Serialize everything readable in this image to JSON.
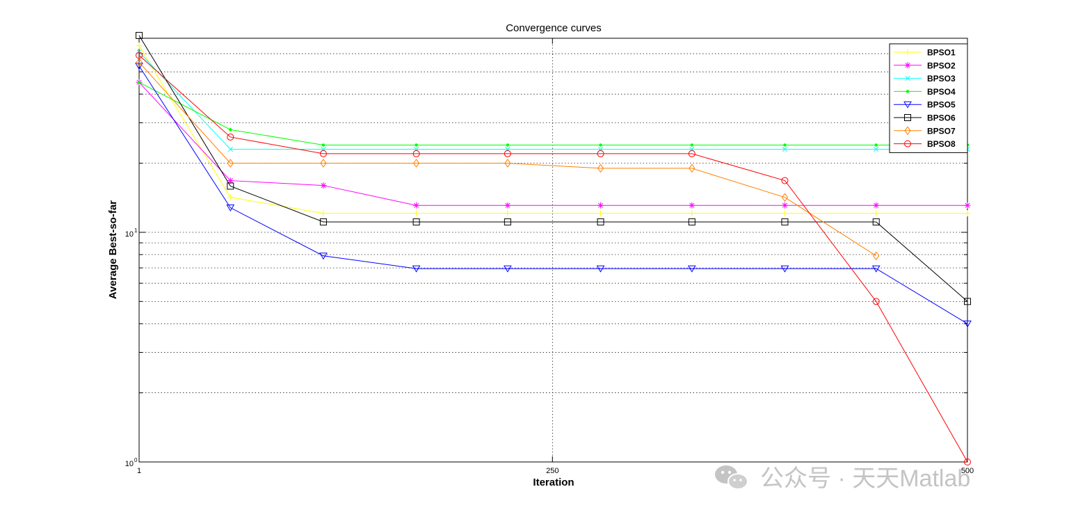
{
  "chart_data": {
    "type": "line",
    "title": "Convergence curves",
    "xlabel": "Iteration",
    "ylabel": "Average Best-so-far",
    "x_scale": "linear",
    "y_scale": "log",
    "xlim": [
      1,
      500
    ],
    "ylim": [
      1,
      70
    ],
    "xticks": [
      {
        "value": 1,
        "label": "1"
      },
      {
        "value": 250,
        "label": "250"
      },
      {
        "value": 500,
        "label": "500"
      }
    ],
    "yticks": [
      {
        "value": 1,
        "base": "10",
        "exp": "0"
      },
      {
        "value": 10,
        "base": "10",
        "exp": "1"
      }
    ],
    "grid": true,
    "legend_position": "top-right",
    "x": [
      1,
      56,
      112,
      168,
      223,
      279,
      334,
      390,
      445,
      500
    ],
    "series": [
      {
        "name": "BPSO1",
        "color": "#ffff00",
        "marker": "plus",
        "values": [
          65,
          14.2,
          12.1,
          12.1,
          12.1,
          12.1,
          12.1,
          12.1,
          12.1,
          12.1
        ]
      },
      {
        "name": "BPSO2",
        "color": "#ff00ff",
        "marker": "star",
        "values": [
          45,
          16.8,
          16.0,
          13.1,
          13.1,
          13.1,
          13.1,
          13.1,
          13.1,
          13.1
        ]
      },
      {
        "name": "BPSO3",
        "color": "#00ffff",
        "marker": "x",
        "values": [
          61,
          23.0,
          23.0,
          23.0,
          23.0,
          23.0,
          23.0,
          23.0,
          23.0,
          23.0
        ]
      },
      {
        "name": "BPSO4",
        "color": "#00ff00",
        "marker": "dot",
        "values": [
          45,
          28.0,
          24.0,
          24.0,
          24.0,
          24.0,
          24.0,
          24.0,
          24.0,
          24.0
        ]
      },
      {
        "name": "BPSO5",
        "color": "#0000ff",
        "marker": "triangle-down",
        "values": [
          53,
          12.8,
          7.9,
          6.95,
          6.95,
          6.95,
          6.95,
          6.95,
          6.95,
          4.0
        ]
      },
      {
        "name": "BPSO6",
        "color": "#000000",
        "marker": "square",
        "values": [
          72,
          15.9,
          11.1,
          11.1,
          11.1,
          11.1,
          11.1,
          11.1,
          11.1,
          5.0
        ]
      },
      {
        "name": "BPSO7",
        "color": "#ff8000",
        "marker": "diamond",
        "values": [
          55,
          20.0,
          20.0,
          20.0,
          20.0,
          19.0,
          19.0,
          14.2,
          7.9,
          null
        ]
      },
      {
        "name": "BPSO8",
        "color": "#ff0000",
        "marker": "circle",
        "values": [
          59,
          26.0,
          22.0,
          22.0,
          22.0,
          22.0,
          22.0,
          16.8,
          5.0,
          1.0
        ]
      }
    ]
  },
  "watermark": {
    "text": "公众号 · 天天Matlab",
    "icon": "wechat-icon"
  }
}
